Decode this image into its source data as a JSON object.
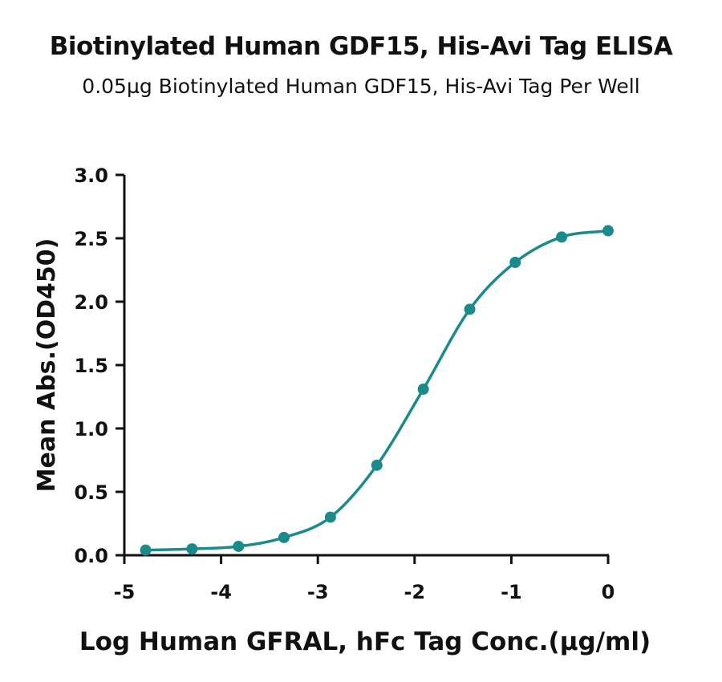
{
  "chart_data": {
    "type": "scatter",
    "title": "Biotinylated Human GDF15, His-Avi Tag ELISA",
    "subtitle": "0.05µg Biotinylated Human GDF15, His-Avi Tag Per Well",
    "xlabel": "Log Human GFRAL, hFc Tag Conc.(µg/ml)",
    "ylabel": "Mean Abs.(OD450)",
    "xlim": [
      -5,
      0
    ],
    "ylim": [
      0,
      3.0
    ],
    "x_ticks": [
      "-5",
      "-4",
      "-3",
      "-2",
      "-1",
      "0"
    ],
    "y_ticks": [
      "0.0",
      "0.5",
      "1.0",
      "1.5",
      "2.0",
      "2.5",
      "3.0"
    ],
    "grid": false,
    "legend": "none",
    "color": "#1b8a8a",
    "series": [
      {
        "x": [
          -4.78,
          -4.3,
          -3.82,
          -3.35,
          -2.87,
          -2.39,
          -1.91,
          -1.43,
          -0.96,
          -0.48,
          0.0
        ],
        "y": [
          0.04,
          0.05,
          0.07,
          0.14,
          0.3,
          0.71,
          1.31,
          1.94,
          2.31,
          2.51,
          2.56
        ],
        "fit": "4PL sigmoid"
      }
    ]
  }
}
